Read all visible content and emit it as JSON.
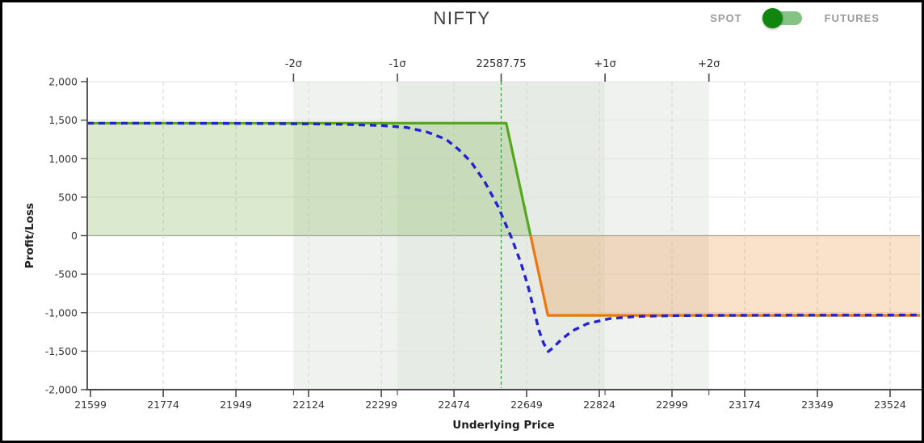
{
  "header": {
    "title": "NIFTY",
    "toggle": {
      "left_label": "SPOT",
      "right_label": "FUTURES",
      "selected": "SPOT",
      "knob_color": "#11860f",
      "track_color": "#85c385",
      "label_color": "#9b9b9b"
    }
  },
  "chart_data": {
    "type": "line",
    "title": "NIFTY",
    "xlabel": "Underlying Price",
    "ylabel": "Profit/Loss",
    "xlim": [
      21591,
      23596
    ],
    "ylim": [
      -2000,
      2000
    ],
    "x_ticks": [
      21599,
      21774,
      21949,
      22124,
      22299,
      22474,
      22649,
      22824,
      22999,
      23174,
      23349,
      23524
    ],
    "y_ticks": [
      2000,
      1500,
      1000,
      500,
      0,
      -500,
      -1000,
      -1500,
      -2000
    ],
    "y_tick_labels": [
      "2,000",
      "1,500",
      "1,000",
      "500",
      "0",
      "-500",
      "-1,000",
      "-1,500",
      "-2,000"
    ],
    "grid": true,
    "legend_position": "none",
    "spot": {
      "price": 22587.75,
      "label": "22587.75"
    },
    "sigma_markers": [
      {
        "label": "-2σ",
        "price": 22087.75
      },
      {
        "label": "-1σ",
        "price": 22337.75
      },
      {
        "label": "+1σ",
        "price": 22837.75
      },
      {
        "label": "+2σ",
        "price": 23087.75
      }
    ],
    "sigma_bands": [
      {
        "from": 22087.75,
        "to": 22337.75,
        "tone": "outer"
      },
      {
        "from": 22337.75,
        "to": 22837.75,
        "tone": "inner"
      },
      {
        "from": 22837.75,
        "to": 23087.75,
        "tone": "outer"
      }
    ],
    "series": [
      {
        "name": "expiry-payoff",
        "style": "solid",
        "points": [
          [
            21591,
            1460
          ],
          [
            22600,
            1460
          ],
          [
            22700,
            -1035
          ],
          [
            23596,
            -1035
          ]
        ]
      },
      {
        "name": "t0-pnl",
        "style": "dashed",
        "points": [
          [
            21591,
            1460
          ],
          [
            21850,
            1459
          ],
          [
            22050,
            1455
          ],
          [
            22200,
            1447
          ],
          [
            22300,
            1430
          ],
          [
            22360,
            1405
          ],
          [
            22410,
            1345
          ],
          [
            22455,
            1250
          ],
          [
            22485,
            1120
          ],
          [
            22515,
            960
          ],
          [
            22548,
            700
          ],
          [
            22580,
            380
          ],
          [
            22612,
            -20
          ],
          [
            22635,
            -350
          ],
          [
            22652,
            -650
          ],
          [
            22666,
            -950
          ],
          [
            22678,
            -1220
          ],
          [
            22690,
            -1400
          ],
          [
            22701,
            -1505
          ],
          [
            22713,
            -1455
          ],
          [
            22732,
            -1350
          ],
          [
            22760,
            -1235
          ],
          [
            22795,
            -1143
          ],
          [
            22848,
            -1078
          ],
          [
            22918,
            -1048
          ],
          [
            23018,
            -1037
          ],
          [
            23210,
            -1033
          ],
          [
            23596,
            -1031
          ]
        ]
      }
    ],
    "colors": {
      "payoff_positive": "#54a81e",
      "payoff_negative": "#ee7611",
      "profit_fill": "rgba(110,170,60,0.25)",
      "loss_fill": "rgba(236,130,35,0.24)",
      "t0_line": "#2424cf",
      "spot_line": "#3f9b3f",
      "band_inner": "#e6ebe5",
      "band_outer": "#f0f2f0",
      "grid": "#e3e3e3",
      "grid_dash": "#d6d6d6",
      "zero_line": "#a8a8a8",
      "axis": "#4a4a4a",
      "tick_text": "#333333"
    }
  }
}
